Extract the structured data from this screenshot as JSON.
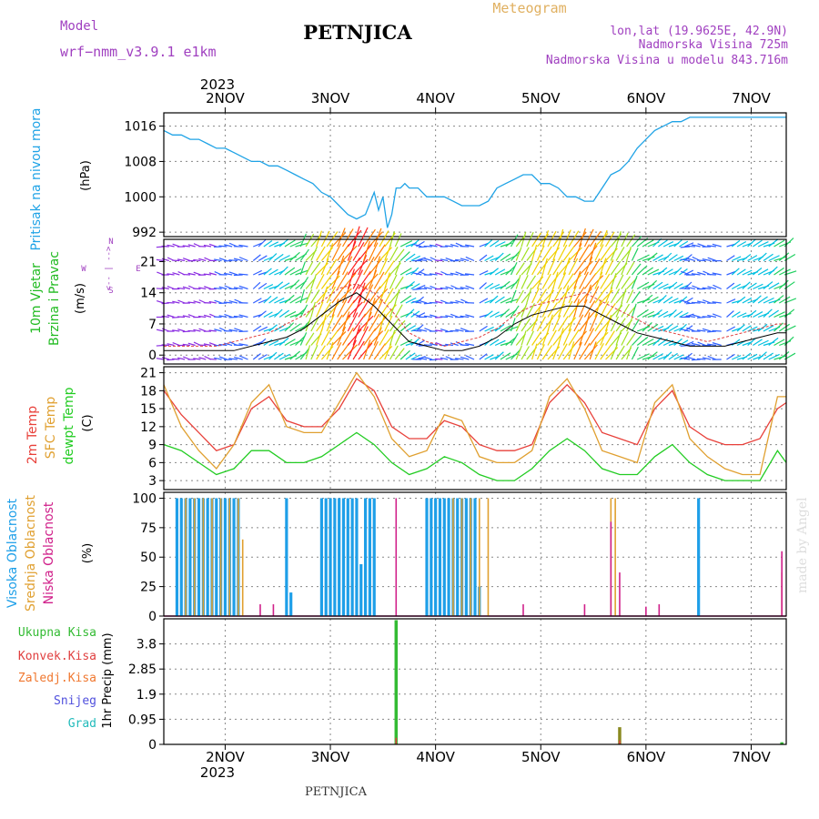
{
  "header": {
    "model_label": "Model",
    "model_name": "wrf−nmm_v3.9.1  e1km",
    "title": "PETNJICA",
    "meteogram": "Meteogram",
    "lonlat": "lon,lat (19.9625E, 42.9N)",
    "altitude": "Nadmorska Visina 725m",
    "model_altitude": "Nadmorska Visina u modelu 843.716m",
    "footer_title": "PETNJICA",
    "watermark": "made by Angel",
    "year_top": "2023",
    "year_bottom": "2023"
  },
  "colors": {
    "pressure": "#1fa3e6",
    "temp2m": "#e8403a",
    "sfc": "#e0a030",
    "dewpt": "#22cc22",
    "high_cloud": "#1e9fe8",
    "mid_cloud": "#e0a030",
    "low_cloud": "#d0208a",
    "precip_total": "#33bb33",
    "precip_conv": "#e04040",
    "precip_frozen": "#f07830",
    "snow": "#5050dd",
    "hail": "#22bbbb",
    "title_purple": "#a040c0",
    "meteo_orange": "#e0b060"
  },
  "chart_data": [
    {
      "type": "line",
      "panel": "pressure",
      "ylabel_1": "Pritisak na nivou mora",
      "ylabel_2": "(hPa)",
      "yticks": [
        992,
        1000,
        1008,
        1016
      ],
      "ylim": [
        991,
        1019
      ],
      "xlim": [
        0,
        142
      ],
      "x_categories": [
        "2NOV",
        "3NOV",
        "4NOV",
        "5NOV",
        "6NOV",
        "7NOV"
      ],
      "x_category_positions": [
        14,
        38,
        62,
        86,
        110,
        134
      ],
      "grid": true,
      "series": [
        {
          "x": [
            0,
            2,
            4,
            6,
            8,
            10,
            12,
            14,
            16,
            18,
            20,
            22,
            24,
            26,
            28,
            30,
            32,
            34,
            36,
            38,
            40,
            42,
            44,
            46,
            48,
            49,
            50,
            51,
            52,
            53,
            54,
            55,
            56,
            58,
            60,
            62,
            64,
            66,
            68,
            70,
            72,
            74,
            76,
            78,
            80,
            82,
            84,
            86,
            88,
            90,
            92,
            94,
            96,
            98,
            100,
            102,
            104,
            106,
            108,
            110,
            112,
            114,
            116,
            118,
            120,
            122,
            124,
            126,
            128,
            130,
            132,
            134,
            136,
            138,
            140,
            142
          ],
          "y": [
            1015,
            1014,
            1014,
            1013,
            1013,
            1012,
            1011,
            1011,
            1010,
            1009,
            1008,
            1008,
            1007,
            1007,
            1006,
            1005,
            1004,
            1003,
            1001,
            1000,
            998,
            996,
            995,
            996,
            1001,
            997,
            1000,
            993,
            996,
            1002,
            1002,
            1003,
            1002,
            1002,
            1000,
            1000,
            1000,
            999,
            998,
            998,
            998,
            999,
            1002,
            1003,
            1004,
            1005,
            1005,
            1003,
            1003,
            1002,
            1000,
            1000,
            999,
            999,
            1002,
            1005,
            1006,
            1008,
            1011,
            1013,
            1015,
            1016,
            1017,
            1017,
            1018,
            1018,
            1018,
            1018,
            1018,
            1018,
            1018,
            1018,
            1018,
            1018,
            1018,
            1018
          ]
        }
      ]
    },
    {
      "type": "line",
      "panel": "wind",
      "ylabel_1": "10m Vjetar",
      "ylabel_2": "Brzina i Pravac",
      "ylabel_3": "(m/s)",
      "compass": {
        "n": "N",
        "w": "W",
        "e": "E",
        "s": "S",
        "arrows": "<-- | -->"
      },
      "yticks": [
        0,
        7,
        14,
        21
      ],
      "ylim": [
        -2,
        26
      ],
      "xlim": [
        0,
        142
      ],
      "grid": true,
      "series": [
        {
          "x": [
            0,
            4,
            8,
            12,
            16,
            20,
            24,
            28,
            32,
            36,
            40,
            44,
            48,
            52,
            56,
            60,
            64,
            68,
            72,
            76,
            80,
            84,
            88,
            92,
            96,
            100,
            104,
            108,
            112,
            116,
            120,
            124,
            128,
            132,
            136,
            140,
            142
          ],
          "y": [
            2,
            2,
            2,
            2,
            3,
            4,
            5,
            7,
            9,
            12,
            15,
            16,
            14,
            10,
            5,
            3,
            2,
            3,
            4,
            6,
            9,
            11,
            12,
            13,
            14,
            12,
            10,
            8,
            6,
            5,
            4,
            3,
            4,
            5,
            6,
            7,
            7
          ]
        },
        {
          "x": [
            0,
            4,
            8,
            12,
            16,
            20,
            24,
            28,
            32,
            36,
            40,
            44,
            48,
            52,
            56,
            60,
            64,
            68,
            72,
            76,
            80,
            84,
            88,
            92,
            96,
            100,
            104,
            108,
            112,
            116,
            120,
            124,
            128,
            132,
            136,
            140,
            142
          ],
          "y": [
            1,
            1,
            1,
            1,
            1,
            2,
            3,
            4,
            6,
            9,
            12,
            14,
            11,
            7,
            3,
            2,
            1,
            1,
            2,
            4,
            7,
            9,
            10,
            11,
            11,
            9,
            7,
            5,
            4,
            3,
            2,
            2,
            2,
            3,
            4,
            5,
            5
          ]
        }
      ]
    },
    {
      "type": "line",
      "panel": "temperature",
      "ylabel_1": "2m Temp",
      "ylabel_2": "SFC Temp",
      "ylabel_3": "dewpt Temp",
      "ylabel_4": "(C)",
      "yticks": [
        3,
        6,
        9,
        12,
        15,
        18,
        21
      ],
      "ylim": [
        1.5,
        22
      ],
      "xlim": [
        0,
        142
      ],
      "grid": true,
      "series": [
        {
          "name": "2m Temp",
          "x": [
            0,
            4,
            8,
            12,
            16,
            20,
            24,
            28,
            32,
            36,
            40,
            44,
            48,
            52,
            56,
            60,
            64,
            68,
            72,
            76,
            80,
            84,
            88,
            92,
            96,
            100,
            104,
            108,
            112,
            116,
            120,
            124,
            128,
            132,
            136,
            140,
            142
          ],
          "y": [
            18,
            14,
            11,
            8,
            9,
            15,
            17,
            13,
            12,
            12,
            15,
            20,
            18,
            12,
            10,
            10,
            13,
            12,
            9,
            8,
            8,
            9,
            16,
            19,
            16,
            11,
            10,
            9,
            15,
            18,
            12,
            10,
            9,
            9,
            10,
            15,
            16
          ]
        },
        {
          "name": "SFC Temp",
          "x": [
            0,
            4,
            8,
            12,
            16,
            20,
            24,
            28,
            32,
            36,
            40,
            44,
            48,
            52,
            56,
            60,
            64,
            68,
            72,
            76,
            80,
            84,
            88,
            92,
            96,
            100,
            104,
            108,
            112,
            116,
            120,
            124,
            128,
            132,
            136,
            140,
            142
          ],
          "y": [
            19,
            12,
            8,
            5,
            9,
            16,
            19,
            12,
            11,
            11,
            16,
            21,
            17,
            10,
            7,
            8,
            14,
            13,
            7,
            6,
            6,
            8,
            17,
            20,
            15,
            8,
            7,
            6,
            16,
            19,
            10,
            7,
            5,
            4,
            4,
            17,
            17
          ]
        },
        {
          "name": "dewpt Temp",
          "x": [
            0,
            4,
            8,
            12,
            16,
            20,
            24,
            28,
            32,
            36,
            40,
            44,
            48,
            52,
            56,
            60,
            64,
            68,
            72,
            76,
            80,
            84,
            88,
            92,
            96,
            100,
            104,
            108,
            112,
            116,
            120,
            124,
            128,
            132,
            136,
            140,
            142
          ],
          "y": [
            9,
            8,
            6,
            4,
            5,
            8,
            8,
            6,
            6,
            7,
            9,
            11,
            9,
            6,
            4,
            5,
            7,
            6,
            4,
            3,
            3,
            5,
            8,
            10,
            8,
            5,
            4,
            4,
            7,
            9,
            6,
            4,
            3,
            3,
            3,
            8,
            6
          ]
        }
      ]
    },
    {
      "type": "bar",
      "panel": "clouds",
      "ylabel_1": "Visoka Oblacnost",
      "ylabel_2": "Srednja Oblacnost",
      "ylabel_3": "Niska Oblacnost",
      "ylabel_4": "(%)",
      "yticks": [
        0,
        25,
        50,
        75,
        100
      ],
      "ylim": [
        0,
        105
      ],
      "xlim": [
        0,
        142
      ],
      "grid": true,
      "series": [
        {
          "name": "Visoka Oblacnost",
          "x": [
            3,
            4,
            5,
            6,
            7,
            8,
            9,
            10,
            11,
            12,
            13,
            14,
            15,
            16,
            17,
            28,
            29,
            36,
            37,
            38,
            39,
            40,
            41,
            42,
            43,
            44,
            45,
            46,
            47,
            48,
            60,
            61,
            62,
            63,
            64,
            65,
            66,
            67,
            68,
            69,
            70,
            71,
            72,
            122
          ],
          "values": [
            100,
            100,
            100,
            100,
            100,
            100,
            100,
            100,
            100,
            100,
            100,
            100,
            100,
            100,
            100,
            100,
            20,
            100,
            100,
            100,
            100,
            100,
            100,
            100,
            100,
            100,
            44,
            100,
            100,
            100,
            100,
            100,
            100,
            100,
            100,
            100,
            100,
            100,
            100,
            100,
            100,
            100,
            25,
            100
          ]
        },
        {
          "name": "Srednja Oblacnost",
          "x": [
            5,
            7,
            9,
            11,
            13,
            15,
            17,
            18,
            66,
            68,
            70,
            72,
            74,
            102,
            103,
            141
          ],
          "values": [
            100,
            100,
            100,
            100,
            100,
            100,
            100,
            65,
            100,
            100,
            100,
            100,
            100,
            100,
            100,
            37
          ]
        },
        {
          "name": "Niska Oblacnost",
          "x": [
            22,
            25,
            53,
            82,
            96,
            102,
            104,
            110,
            113,
            141
          ],
          "values": [
            10,
            10,
            100,
            10,
            10,
            80,
            37,
            8,
            10,
            55
          ]
        }
      ]
    },
    {
      "type": "bar",
      "panel": "precipitation",
      "ylabel_1": "1hr Precip (mm)",
      "legend": [
        "Ukupna Kisa",
        "Konvek.Kisa",
        "Zaledj.Kisa",
        "Snijeg",
        "Grad"
      ],
      "yticks": [
        0,
        0.95,
        1.9,
        2.85,
        3.8
      ],
      "ylim": [
        0,
        4.75
      ],
      "xlim": [
        0,
        142
      ],
      "grid": true,
      "x_categories": [
        "2NOV",
        "3NOV",
        "4NOV",
        "5NOV",
        "6NOV",
        "7NOV"
      ],
      "series": [
        {
          "name": "Ukupna Kisa",
          "x": [
            53,
            104,
            141
          ],
          "values": [
            4.7,
            0.65,
            0.08
          ]
        },
        {
          "name": "Konvek.Kisa",
          "x": [
            53,
            104
          ],
          "values": [
            0.25,
            0.15
          ]
        }
      ]
    }
  ]
}
